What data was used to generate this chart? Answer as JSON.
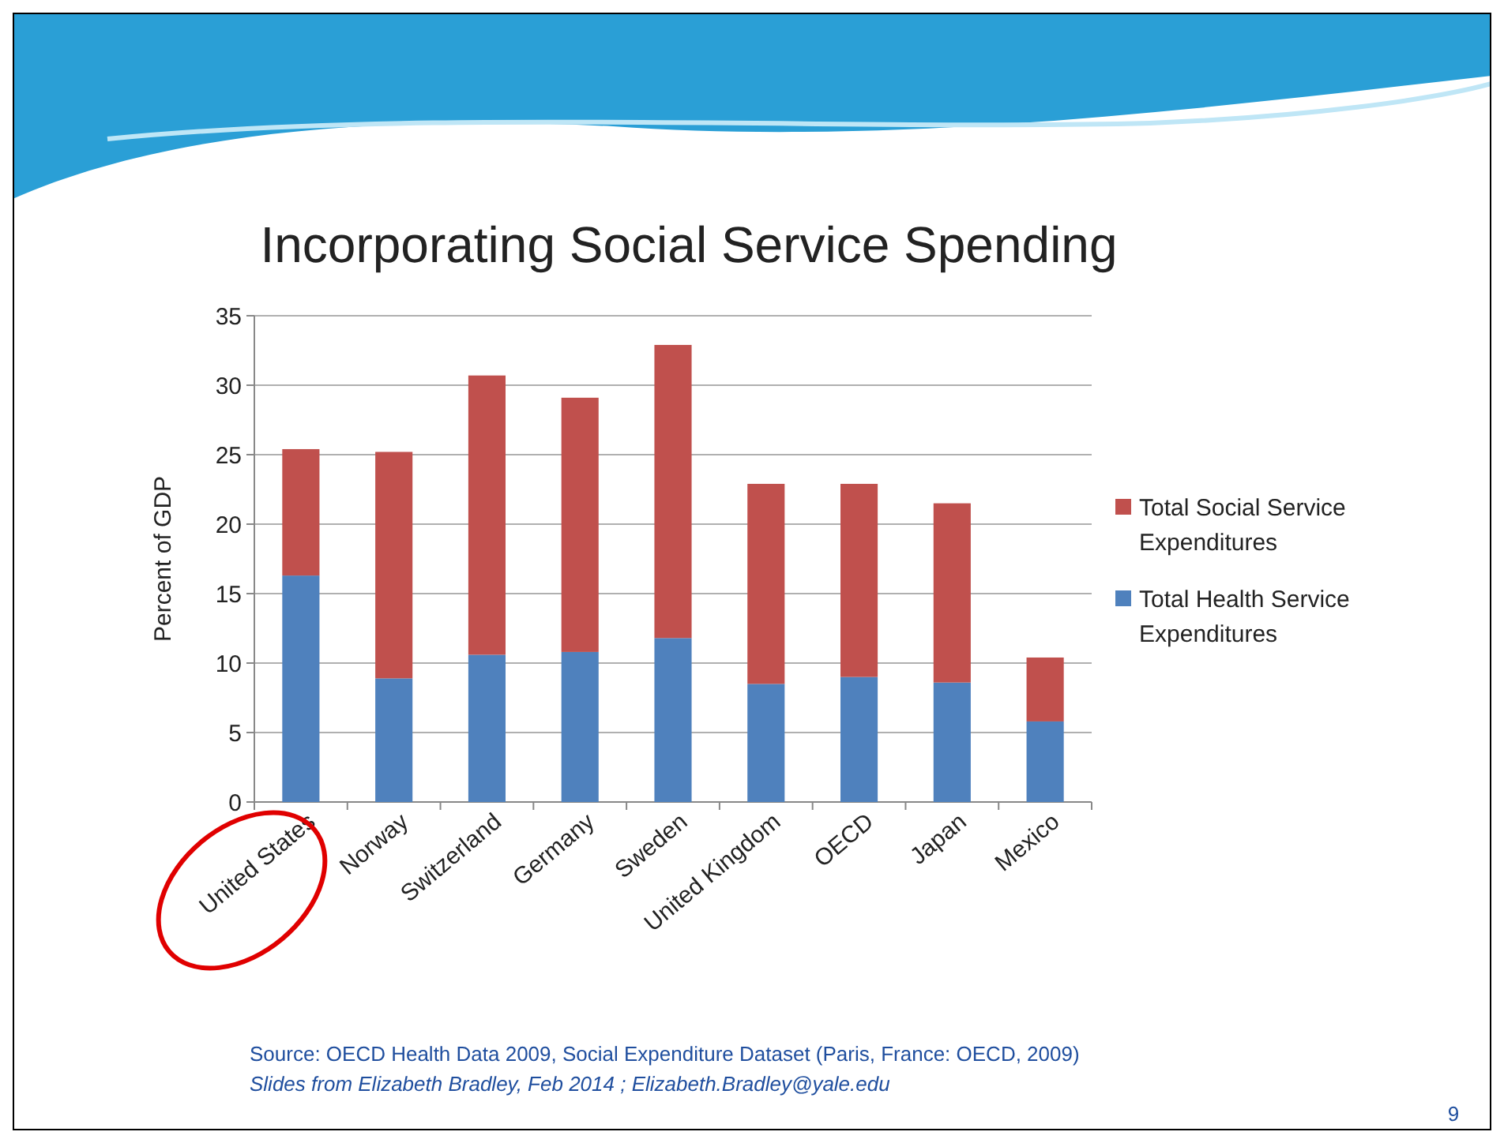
{
  "chart_data": {
    "type": "bar",
    "title": "Incorporating Social Service Spending",
    "ylabel": "Percent of GDP",
    "categories": [
      "United States",
      "Norway",
      "Switzerland",
      "Germany",
      "Sweden",
      "United Kingdom",
      "OECD",
      "Japan",
      "Mexico"
    ],
    "series": [
      {
        "name": "Total Health Service Expenditures",
        "color": "#4f81bd",
        "values": [
          16.3,
          8.9,
          10.6,
          10.8,
          11.8,
          8.5,
          9.0,
          8.6,
          5.8
        ]
      },
      {
        "name": "Total Social Service Expenditures",
        "color": "#c0504d",
        "values": [
          9.1,
          16.3,
          20.1,
          18.3,
          21.1,
          14.4,
          13.9,
          12.9,
          4.6
        ]
      }
    ],
    "stacked": true,
    "ylim": [
      0,
      35
    ],
    "yticks": [
      0,
      5,
      10,
      15,
      20,
      25,
      30,
      35
    ],
    "grid": "y",
    "legend": "right",
    "annotations": [
      "Source: OECD Health Data 2009, Social Expenditure Dataset (Paris, France: OECD, 2009)",
      "Slides from Elizabeth Bradley, Feb 2014 ; Elizabeth.Bradley@yale.edu",
      "9"
    ]
  }
}
